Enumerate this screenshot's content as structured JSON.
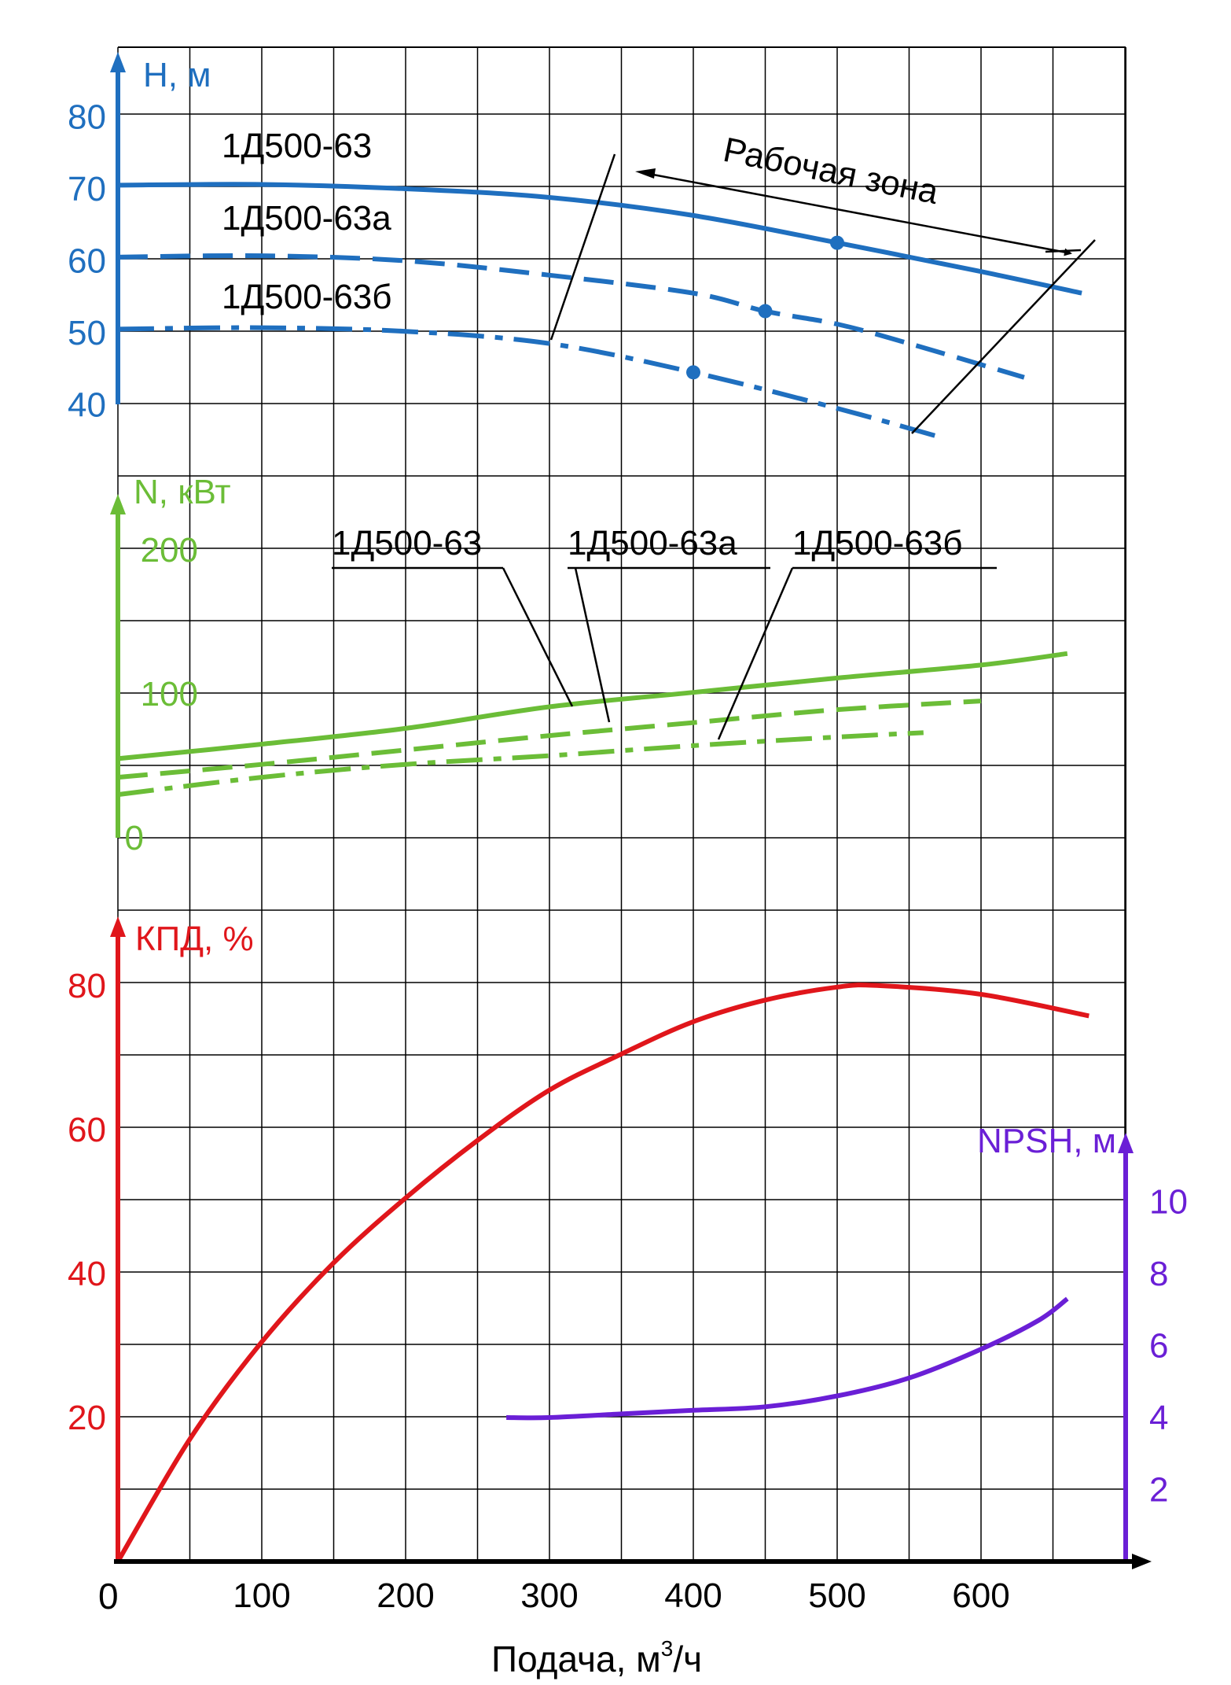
{
  "colors": {
    "head": "#1f6fbf",
    "power": "#6bbd37",
    "efficiency": "#e0161b",
    "npsh": "#6a1fd6",
    "grid": "#000000",
    "text": "#000000"
  },
  "chart_data": {
    "type": "line",
    "x_axis": {
      "label": "Подача, м³/ч",
      "label_main": "Подача, м",
      "label_sup": "3",
      "label_tail": "/ч",
      "origin_label": "0",
      "ticks": [
        100,
        200,
        300,
        400,
        500,
        600
      ],
      "range": [
        0,
        700
      ]
    },
    "head_panel": {
      "axis_label": "H, м",
      "ticks": [
        40,
        50,
        60,
        70,
        80
      ],
      "range": [
        30,
        90
      ],
      "working_zone_label": "Рабочая зона",
      "series_labels": [
        "1Д500-63",
        "1Д500-63а",
        "1Д500-63б"
      ],
      "series": [
        {
          "name": "1Д500-63",
          "style": "solid",
          "points": [
            [
              0,
              70.5
            ],
            [
              100,
              70.6
            ],
            [
              200,
              70.0
            ],
            [
              300,
              68.8
            ],
            [
              400,
              66.3
            ],
            [
              500,
              62.5
            ],
            [
              600,
              58.5
            ],
            [
              670,
              55.5
            ]
          ],
          "marker": [
            500,
            62.5
          ]
        },
        {
          "name": "1Д500-63а",
          "style": "dash",
          "points": [
            [
              0,
              60.5
            ],
            [
              100,
              60.7
            ],
            [
              200,
              60.0
            ],
            [
              300,
              58.0
            ],
            [
              400,
              55.5
            ],
            [
              450,
              53.0
            ],
            [
              500,
              51.2
            ],
            [
              550,
              48.5
            ],
            [
              630,
              43.8
            ]
          ],
          "marker": [
            450,
            53.0
          ]
        },
        {
          "name": "1Д500-63б",
          "style": "dashdot",
          "points": [
            [
              0,
              50.5
            ],
            [
              100,
              50.7
            ],
            [
              200,
              50.2
            ],
            [
              300,
              48.5
            ],
            [
              400,
              44.5
            ],
            [
              500,
              39.5
            ],
            [
              575,
              35.3
            ]
          ],
          "marker": [
            400,
            44.5
          ]
        }
      ]
    },
    "power_panel": {
      "axis_label": "N, кВт",
      "ticks": [
        0,
        100,
        200
      ],
      "range": [
        0,
        250
      ],
      "series_labels": [
        "1Д500-63",
        "1Д500-63а",
        "1Д500-63б"
      ],
      "series": [
        {
          "name": "1Д500-63",
          "style": "solid",
          "points": [
            [
              0,
              55
            ],
            [
              100,
              65
            ],
            [
              200,
              76
            ],
            [
              300,
              91
            ],
            [
              400,
              101
            ],
            [
              500,
              111
            ],
            [
              600,
              120
            ],
            [
              660,
              128
            ]
          ]
        },
        {
          "name": "1Д500-63а",
          "style": "dash",
          "points": [
            [
              0,
              42
            ],
            [
              100,
              51
            ],
            [
              200,
              61
            ],
            [
              300,
              71
            ],
            [
              400,
              80
            ],
            [
              500,
              89
            ],
            [
              600,
              95
            ]
          ]
        },
        {
          "name": "1Д500-63б",
          "style": "dashdot",
          "points": [
            [
              0,
              30
            ],
            [
              100,
              42
            ],
            [
              200,
              51
            ],
            [
              300,
              57
            ],
            [
              400,
              64
            ],
            [
              500,
              70
            ],
            [
              560,
              73
            ]
          ]
        }
      ]
    },
    "efficiency_panel": {
      "axis_label": "КПД, %",
      "ticks": [
        20,
        40,
        60,
        80
      ],
      "range": [
        0,
        90
      ],
      "series": [
        {
          "name": "КПД",
          "style": "solid",
          "points": [
            [
              0,
              0
            ],
            [
              50,
              17
            ],
            [
              100,
              30.5
            ],
            [
              150,
              41.5
            ],
            [
              200,
              50.5
            ],
            [
              250,
              58.5
            ],
            [
              300,
              65.5
            ],
            [
              350,
              70.5
            ],
            [
              400,
              75
            ],
            [
              450,
              78
            ],
            [
              500,
              79.8
            ],
            [
              530,
              80
            ],
            [
              600,
              78.8
            ],
            [
              675,
              75.8
            ]
          ]
        }
      ]
    },
    "npsh_panel": {
      "axis_label": "NPSH, м",
      "ticks": [
        2,
        4,
        6,
        8,
        10
      ],
      "range": [
        0,
        12
      ],
      "series": [
        {
          "name": "NPSH",
          "style": "solid",
          "points": [
            [
              270,
              4.0
            ],
            [
              300,
              4.0
            ],
            [
              350,
              4.1
            ],
            [
              400,
              4.2
            ],
            [
              450,
              4.3
            ],
            [
              500,
              4.6
            ],
            [
              550,
              5.1
            ],
            [
              600,
              5.9
            ],
            [
              640,
              6.7
            ],
            [
              660,
              7.3
            ]
          ]
        }
      ]
    }
  }
}
